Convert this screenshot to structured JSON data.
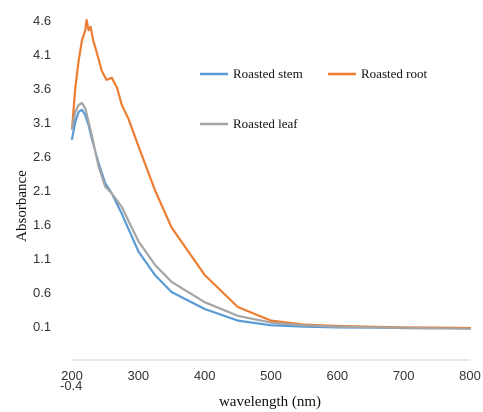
{
  "chart_data": {
    "type": "line",
    "xlabel": "wavelength (nm)",
    "ylabel": "Absorbance",
    "xlim": [
      200,
      800
    ],
    "ylim": [
      -0.4,
      4.6
    ],
    "x_ticks": [
      "200",
      "300",
      "400",
      "500",
      "600",
      "700",
      "800"
    ],
    "y_ticks": [
      "4.6",
      "4.1",
      "3.6",
      "3.1",
      "2.6",
      "2.1",
      "1.6",
      "1.1",
      "0.6",
      "0.1",
      "-0.4"
    ],
    "x_tick_values": [
      200,
      300,
      400,
      500,
      600,
      700,
      800
    ],
    "y_tick_values": [
      4.6,
      4.1,
      3.6,
      3.1,
      2.6,
      2.1,
      1.6,
      1.1,
      0.6,
      0.1,
      -0.4
    ],
    "grid": false,
    "legend_position": "top-right",
    "series": [
      {
        "name": "Roasted stem",
        "color": "#5b9bd5",
        "x": [
          200,
          205,
          210,
          215,
          220,
          225,
          230,
          240,
          250,
          260,
          275,
          300,
          325,
          350,
          400,
          450,
          500,
          550,
          600,
          700,
          800
        ],
        "y": [
          2.85,
          3.1,
          3.25,
          3.28,
          3.2,
          3.05,
          2.85,
          2.5,
          2.2,
          2.05,
          1.75,
          1.2,
          0.85,
          0.6,
          0.35,
          0.18,
          0.11,
          0.09,
          0.08,
          0.07,
          0.06
        ]
      },
      {
        "name": "Roasted root",
        "color": "#ed7d31",
        "x": [
          200,
          205,
          210,
          215,
          220,
          222,
          225,
          228,
          232,
          238,
          245,
          252,
          260,
          268,
          275,
          285,
          300,
          325,
          350,
          400,
          450,
          500,
          550,
          600,
          700,
          800
        ],
        "y": [
          3.0,
          3.6,
          4.0,
          4.3,
          4.45,
          4.6,
          4.45,
          4.5,
          4.3,
          4.1,
          3.85,
          3.72,
          3.75,
          3.6,
          3.35,
          3.15,
          2.75,
          2.1,
          1.55,
          0.85,
          0.38,
          0.18,
          0.12,
          0.1,
          0.08,
          0.07
        ]
      },
      {
        "name": "Roasted leaf",
        "color": "#a5a5a5",
        "x": [
          200,
          205,
          210,
          215,
          220,
          225,
          230,
          240,
          250,
          260,
          275,
          300,
          325,
          350,
          400,
          450,
          500,
          550,
          600,
          700,
          800
        ],
        "y": [
          3.0,
          3.25,
          3.35,
          3.38,
          3.3,
          3.1,
          2.9,
          2.45,
          2.15,
          2.05,
          1.85,
          1.35,
          1.0,
          0.75,
          0.45,
          0.25,
          0.15,
          0.11,
          0.09,
          0.07,
          0.06
        ]
      }
    ]
  }
}
